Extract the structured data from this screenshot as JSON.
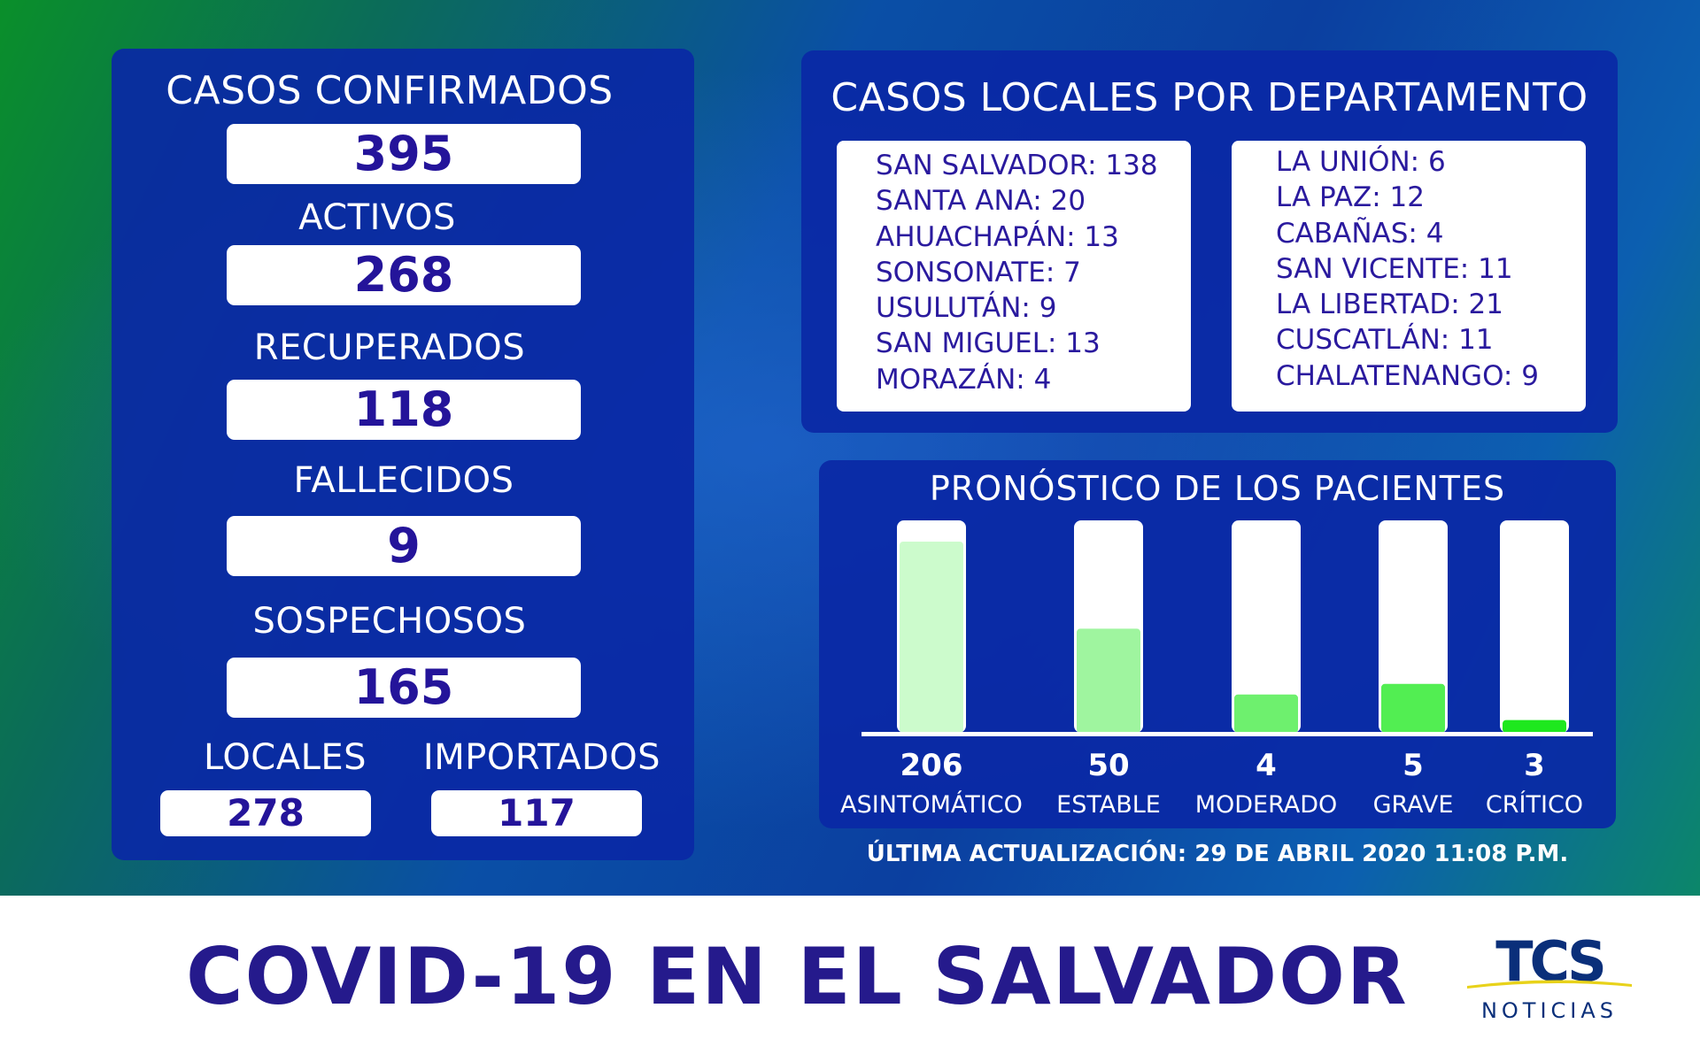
{
  "summary": {
    "confirmed_label": "CASOS CONFIRMADOS",
    "confirmed_value": "395",
    "active_label": "ACTIVOS",
    "active_value": "268",
    "recovered_label": "RECUPERADOS",
    "recovered_value": "118",
    "deceased_label": "FALLECIDOS",
    "deceased_value": "9",
    "suspected_label": "SOSPECHOSOS",
    "suspected_value": "165",
    "local_label": "LOCALES",
    "local_value": "278",
    "imported_label": "IMPORTADOS",
    "imported_value": "117"
  },
  "departments": {
    "title": "CASOS LOCALES POR DEPARTAMENTO",
    "left": [
      "SAN SALVADOR: 138",
      "SANTA ANA: 20",
      "AHUACHAPÁN: 13",
      "SONSONATE: 7",
      "USULUTÁN: 9",
      "SAN MIGUEL: 13",
      "MORAZÁN: 4"
    ],
    "right": [
      "LA UNIÓN: 6",
      "LA PAZ: 12",
      "CABAÑAS: 4",
      "SAN VICENTE: 11",
      "LA LIBERTAD: 21",
      "CUSCATLÁN: 11",
      "CHALATENANGO: 9"
    ]
  },
  "chart_data": {
    "type": "bar",
    "title": "PRONÓSTICO DE LOS PACIENTES",
    "categories": [
      "ASINTOMÁTICO",
      "ESTABLE",
      "MODERADO",
      "GRAVE",
      "CRÍTICO"
    ],
    "values": [
      206,
      50,
      4,
      5,
      3
    ],
    "value_labels": [
      "206",
      "50",
      "4",
      "5",
      "3"
    ],
    "fill_fraction": [
      0.9,
      0.49,
      0.18,
      0.23,
      0.06
    ],
    "colors": [
      "#ccfbcc",
      "#9ff59f",
      "#6ef06e",
      "#52ee52",
      "#1ee81e"
    ],
    "xlabel": "",
    "ylabel": "",
    "legend": "none",
    "grid": false
  },
  "update_text": "ÚLTIMA ACTUALIZACIÓN: 29 DE ABRIL 2020 11:08 P.M.",
  "footer": {
    "title": "COVID-19  EN EL SALVADOR",
    "logo_text": "TCS",
    "logo_sub": "NOTICIAS"
  }
}
